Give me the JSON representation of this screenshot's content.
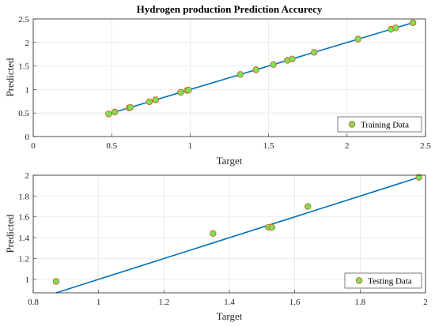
{
  "chart_data": [
    {
      "type": "scatter",
      "title": "Hydrogen production Prediction Accurecy",
      "xlabel": "Target",
      "ylabel": "Predicted",
      "xlim": [
        0,
        2.5
      ],
      "ylim": [
        0,
        2.5
      ],
      "xticks": [
        "0",
        "0.5",
        "1",
        "1.5",
        "2",
        "2.5"
      ],
      "yticks": [
        "0",
        "0.5",
        "1",
        "1.5",
        "2",
        "2.5"
      ],
      "grid": true,
      "legend_position": "bottom-right",
      "series": [
        {
          "name": "Training Data",
          "kind": "scatter",
          "color": "#77e35a",
          "edge_color": "#d95319",
          "points": [
            [
              0.48,
              0.48
            ],
            [
              0.52,
              0.52
            ],
            [
              0.61,
              0.61
            ],
            [
              0.62,
              0.62
            ],
            [
              0.74,
              0.74
            ],
            [
              0.78,
              0.78
            ],
            [
              0.94,
              0.94
            ],
            [
              0.98,
              0.98
            ],
            [
              0.99,
              0.99
            ],
            [
              1.32,
              1.32
            ],
            [
              1.42,
              1.42
            ],
            [
              1.53,
              1.53
            ],
            [
              1.62,
              1.62
            ],
            [
              1.65,
              1.65
            ],
            [
              1.79,
              1.79
            ],
            [
              2.07,
              2.07
            ],
            [
              2.28,
              2.28
            ],
            [
              2.31,
              2.31
            ],
            [
              2.42,
              2.42
            ]
          ]
        },
        {
          "kind": "line",
          "color": "#0072bd",
          "points": [
            [
              0.48,
              0.48
            ],
            [
              2.42,
              2.42
            ]
          ]
        }
      ]
    },
    {
      "type": "scatter",
      "xlabel": "Target",
      "ylabel": "Predicted",
      "xlim": [
        0.8,
        2
      ],
      "ylim": [
        0.87,
        2
      ],
      "xticks": [
        "0.8",
        "1",
        "1.2",
        "1.4",
        "1.6",
        "1.8",
        "2"
      ],
      "yticks": [
        "1",
        "1.2",
        "1.4",
        "1.6",
        "1.8",
        "2"
      ],
      "grid": true,
      "legend_position": "bottom-right",
      "series": [
        {
          "name": "Testing Data",
          "kind": "scatter",
          "color": "#77e35a",
          "edge_color": "#d95319",
          "points": [
            [
              0.87,
              0.98
            ],
            [
              1.35,
              1.44
            ],
            [
              1.52,
              1.5
            ],
            [
              1.53,
              1.5
            ],
            [
              1.64,
              1.7
            ],
            [
              1.98,
              1.98
            ]
          ]
        },
        {
          "kind": "line",
          "color": "#0072bd",
          "points": [
            [
              0.87,
              0.87
            ],
            [
              1.98,
              1.98
            ]
          ]
        }
      ]
    }
  ]
}
